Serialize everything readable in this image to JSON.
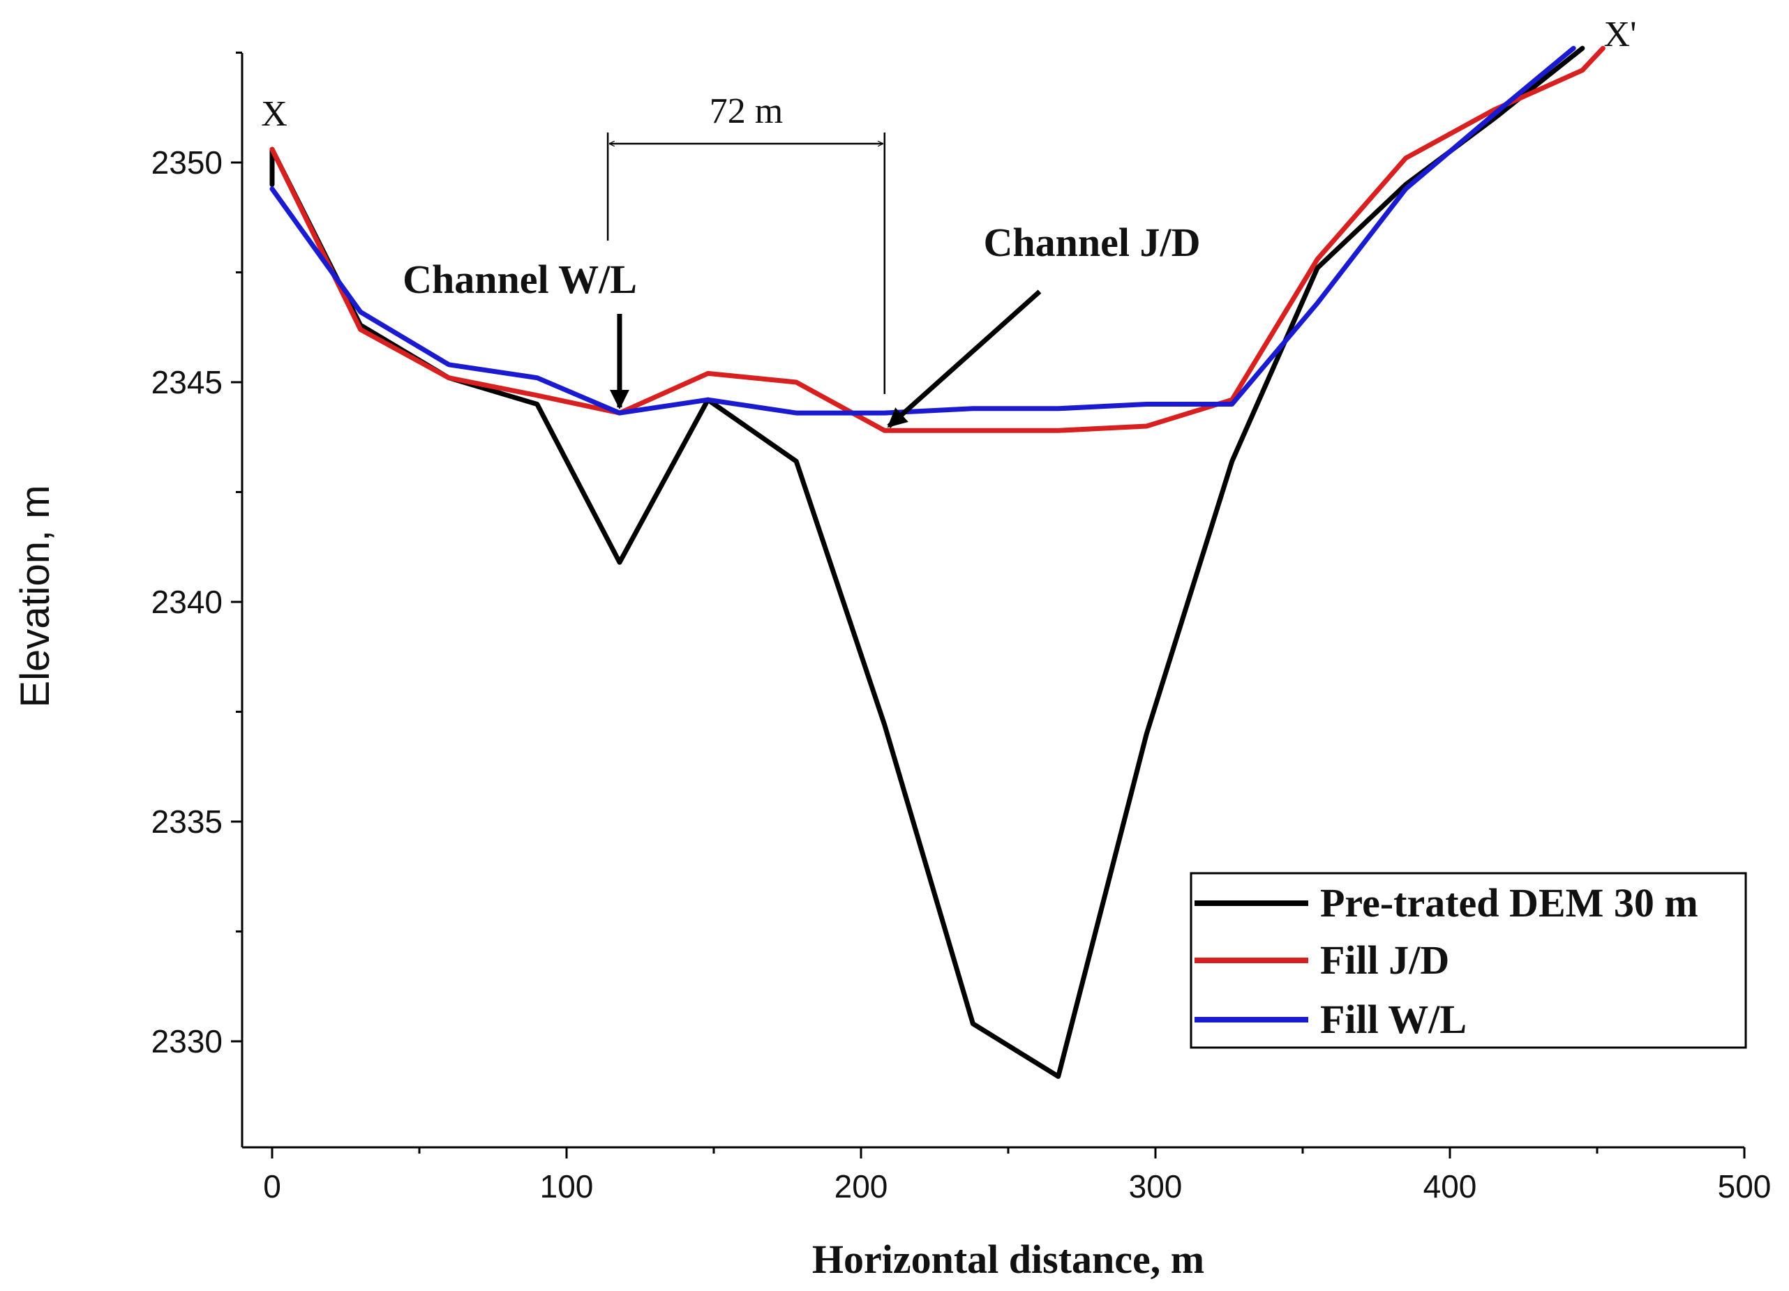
{
  "chart_data": {
    "type": "line",
    "title": "",
    "xlabel": "Horizontal distance, m",
    "ylabel": "Elevation, m",
    "xlim": [
      -5,
      500
    ],
    "ylim": [
      2327.5,
      2352.5
    ],
    "xticks": [
      0,
      100,
      200,
      300,
      400,
      500
    ],
    "yticks": [
      2330,
      2335,
      2340,
      2345,
      2350
    ],
    "grid": false,
    "legend_position": "bottom-right",
    "series": [
      {
        "name": "Pre-trated DEM 30 m",
        "color": "#000000",
        "x": [
          0,
          0,
          30,
          60,
          90,
          118,
          148,
          178,
          208,
          238,
          267,
          297,
          326,
          355,
          385,
          415,
          445
        ],
        "y": [
          2349.5,
          2350.3,
          2346.3,
          2345.1,
          2344.5,
          2340.9,
          2344.6,
          2343.2,
          2337.2,
          2330.4,
          2329.2,
          2337.0,
          2343.2,
          2347.6,
          2349.5,
          2351.0,
          2352.6
        ]
      },
      {
        "name": "Fill J/D",
        "color": "#d92020",
        "x": [
          0,
          30,
          60,
          90,
          118,
          148,
          178,
          208,
          238,
          267,
          297,
          326,
          355,
          385,
          415,
          445,
          452
        ],
        "y": [
          2350.3,
          2346.2,
          2345.1,
          2344.7,
          2344.3,
          2345.2,
          2345.0,
          2343.9,
          2343.9,
          2343.9,
          2344.0,
          2344.6,
          2347.8,
          2350.1,
          2351.2,
          2352.1,
          2352.6
        ]
      },
      {
        "name": "Fill W/L",
        "color": "#1a1ad0",
        "x": [
          0,
          30,
          60,
          90,
          118,
          148,
          178,
          208,
          238,
          267,
          297,
          326,
          355,
          385,
          415,
          442
        ],
        "y": [
          2349.4,
          2346.6,
          2345.4,
          2345.1,
          2344.3,
          2344.6,
          2344.3,
          2344.3,
          2344.4,
          2344.4,
          2344.5,
          2344.5,
          2346.8,
          2349.4,
          2351.1,
          2352.6
        ]
      }
    ],
    "annotations": {
      "start_marker": "X",
      "end_marker": "X'",
      "span_label": "72 m",
      "span_x": [
        114,
        208
      ],
      "channel_wl": {
        "label": "Channel W/L",
        "target": [
          118,
          2344.3
        ]
      },
      "channel_jd": {
        "label": "Channel J/D",
        "target": [
          208,
          2343.9
        ]
      }
    }
  }
}
